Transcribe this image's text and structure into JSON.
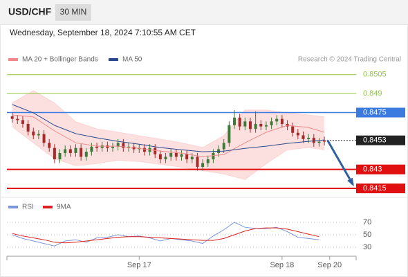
{
  "header": {
    "symbol": "USD/CHF",
    "interval": "30 MIN",
    "timestamp": "Wednesday, September 18, 2024 7:10:55 AM CET"
  },
  "chart_data": [
    {
      "type": "candlestick",
      "source": "Research © 2024 Trading Central",
      "xlim": [
        -1,
        65
      ],
      "ylim": [
        0.8409,
        0.8512
      ],
      "candles": {
        "up_color": "#3d7a3a",
        "down_color": "#a52a2a",
        "open": [
          0.8472,
          0.847,
          0.8469,
          0.8466,
          0.846,
          0.8457,
          0.8458,
          0.8451,
          0.8447,
          0.8438,
          0.8443,
          0.8446,
          0.8443,
          0.8447,
          0.844,
          0.8444,
          0.8448,
          0.8447,
          0.8449,
          0.8447,
          0.8448,
          0.8451,
          0.8447,
          0.8448,
          0.8446,
          0.8447,
          0.8444,
          0.8447,
          0.8442,
          0.8438,
          0.844,
          0.8443,
          0.844,
          0.8442,
          0.8438,
          0.844,
          0.8432,
          0.8435,
          0.8438,
          0.8443,
          0.8446,
          0.8451,
          0.8465,
          0.8471,
          0.8464,
          0.8468,
          0.8462,
          0.8466,
          0.8464,
          0.8465,
          0.8468,
          0.847,
          0.8466,
          0.8464,
          0.8459,
          0.8457,
          0.8454,
          0.8455,
          0.8451,
          0.8453
        ],
        "high": [
          0.8475,
          0.8473,
          0.8472,
          0.8469,
          0.8463,
          0.8461,
          0.8461,
          0.8454,
          0.845,
          0.8446,
          0.8449,
          0.8449,
          0.845,
          0.845,
          0.8447,
          0.8451,
          0.8451,
          0.8452,
          0.8452,
          0.8451,
          0.8454,
          0.8454,
          0.8451,
          0.8451,
          0.845,
          0.845,
          0.845,
          0.845,
          0.8445,
          0.8443,
          0.8446,
          0.8446,
          0.8445,
          0.8445,
          0.8443,
          0.8443,
          0.8438,
          0.8441,
          0.8446,
          0.8449,
          0.8454,
          0.8468,
          0.8477,
          0.8474,
          0.8471,
          0.8471,
          0.8476,
          0.8469,
          0.8468,
          0.8471,
          0.8473,
          0.8473,
          0.8469,
          0.8467,
          0.8462,
          0.846,
          0.8458,
          0.8458,
          0.8455,
          0.8456
        ],
        "low": [
          0.8467,
          0.8466,
          0.8463,
          0.8457,
          0.8454,
          0.8454,
          0.8448,
          0.8444,
          0.8435,
          0.8435,
          0.844,
          0.844,
          0.844,
          0.8437,
          0.8437,
          0.8441,
          0.8444,
          0.8444,
          0.8444,
          0.8444,
          0.8445,
          0.8444,
          0.8444,
          0.8443,
          0.8443,
          0.8441,
          0.8441,
          0.8439,
          0.8435,
          0.8435,
          0.8437,
          0.8437,
          0.8437,
          0.8435,
          0.8435,
          0.8429,
          0.8429,
          0.8432,
          0.8435,
          0.844,
          0.8443,
          0.8448,
          0.8462,
          0.8461,
          0.8461,
          0.8459,
          0.8459,
          0.8461,
          0.8461,
          0.8462,
          0.8465,
          0.8463,
          0.8461,
          0.8456,
          0.8454,
          0.8451,
          0.8451,
          0.8448,
          0.8448,
          0.8449
        ],
        "close": [
          0.847,
          0.8469,
          0.8466,
          0.846,
          0.8457,
          0.8458,
          0.8451,
          0.8447,
          0.8438,
          0.8443,
          0.8446,
          0.8443,
          0.8447,
          0.844,
          0.8444,
          0.8448,
          0.8447,
          0.8449,
          0.8447,
          0.8448,
          0.8451,
          0.8447,
          0.8448,
          0.8446,
          0.8447,
          0.8444,
          0.8447,
          0.8442,
          0.8438,
          0.844,
          0.8443,
          0.844,
          0.8442,
          0.8438,
          0.844,
          0.8432,
          0.8435,
          0.8438,
          0.8443,
          0.8446,
          0.8451,
          0.8465,
          0.8471,
          0.8464,
          0.8468,
          0.8462,
          0.8466,
          0.8464,
          0.8465,
          0.8468,
          0.847,
          0.8466,
          0.8464,
          0.8459,
          0.8457,
          0.8454,
          0.8455,
          0.8451,
          0.8452,
          0.8452
        ]
      },
      "series": [
        {
          "name": "MA 20 + Bollinger Bands",
          "color": "#f08a8a",
          "band_color": "#fbd3d3",
          "x": [
            0,
            4,
            8,
            12,
            16,
            20,
            24,
            28,
            32,
            36,
            40,
            44,
            48,
            52,
            56,
            59
          ],
          "values": [
            0.84731,
            0.84715,
            0.84605,
            0.84511,
            0.84484,
            0.84484,
            0.84467,
            0.84445,
            0.84429,
            0.84401,
            0.84418,
            0.84511,
            0.84594,
            0.84649,
            0.84632,
            0.84594
          ],
          "upper": [
            0.84825,
            0.84924,
            0.84825,
            0.84676,
            0.84621,
            0.84594,
            0.84566,
            0.84539,
            0.84511,
            0.84473,
            0.84566,
            0.8477,
            0.8477,
            0.84748,
            0.84731,
            0.84715
          ],
          "lower": [
            0.84638,
            0.84511,
            0.84385,
            0.8433,
            0.84346,
            0.84374,
            0.84363,
            0.84341,
            0.84319,
            0.84291,
            0.84264,
            0.8422,
            0.84346,
            0.84456,
            0.84473,
            0.84456
          ]
        },
        {
          "name": "MA 50",
          "color": "#2b4a8c",
          "x": [
            0,
            4,
            8,
            12,
            16,
            20,
            24,
            28,
            32,
            36,
            40,
            44,
            48,
            52,
            56,
            59
          ],
          "values": [
            0.84814,
            0.84748,
            0.84649,
            0.84583,
            0.8455,
            0.84522,
            0.845,
            0.84473,
            0.84456,
            0.8444,
            0.84445,
            0.84467,
            0.84484,
            0.84506,
            0.84522,
            0.84533
          ]
        }
      ],
      "levels": [
        {
          "value": 0.8505,
          "color": "#8dc63f",
          "box": false,
          "width": 1
        },
        {
          "value": 0.849,
          "color": "#8dc63f",
          "box": false,
          "width": 1
        },
        {
          "value": 0.8475,
          "color": "#3b7be0",
          "box": true,
          "width": 1.5
        },
        {
          "value": 0.8453,
          "color": "#222222",
          "box": true,
          "width": 1,
          "dotted": true
        },
        {
          "value": 0.843,
          "color": "#e01010",
          "box": true,
          "width": 2
        },
        {
          "value": 0.8415,
          "color": "#e01010",
          "box": true,
          "width": 2
        }
      ],
      "forecast": {
        "x": [
          59.6,
          64.4
        ],
        "y": [
          0.8453,
          0.8418
        ],
        "color": "#2f5f9f"
      }
    },
    {
      "type": "line",
      "xlim": [
        -1,
        65
      ],
      "ylim": [
        20,
        80
      ],
      "yticks": [
        30,
        50,
        70
      ],
      "grid": true,
      "xticks": [
        {
          "value": 24,
          "label": "Sep 17"
        },
        {
          "value": 51,
          "label": "Sep 18"
        },
        {
          "value": 60,
          "label": "Sep 20"
        }
      ],
      "x": [
        0,
        2,
        4,
        6,
        8,
        10,
        12,
        14,
        16,
        18,
        20,
        22,
        24,
        26,
        28,
        30,
        32,
        34,
        36,
        38,
        40,
        42,
        44,
        46,
        48,
        50,
        52,
        54,
        56,
        58
      ],
      "series": [
        {
          "name": "RSI",
          "color": "#7b96dc",
          "values": [
            50,
            44,
            40,
            36,
            32,
            40,
            42,
            38,
            45,
            46,
            50,
            47,
            48,
            45,
            40,
            44,
            42,
            40,
            36,
            48,
            58,
            70,
            62,
            60,
            60,
            62,
            55,
            46,
            44,
            42
          ]
        },
        {
          "name": "9MA",
          "color": "#e02020",
          "values": [
            52,
            48,
            45,
            42,
            38,
            37,
            38,
            40,
            42,
            44,
            46,
            47,
            47,
            46,
            45,
            44,
            43,
            42,
            41,
            41,
            44,
            50,
            56,
            60,
            61,
            61,
            59,
            55,
            51,
            47
          ]
        }
      ]
    }
  ]
}
